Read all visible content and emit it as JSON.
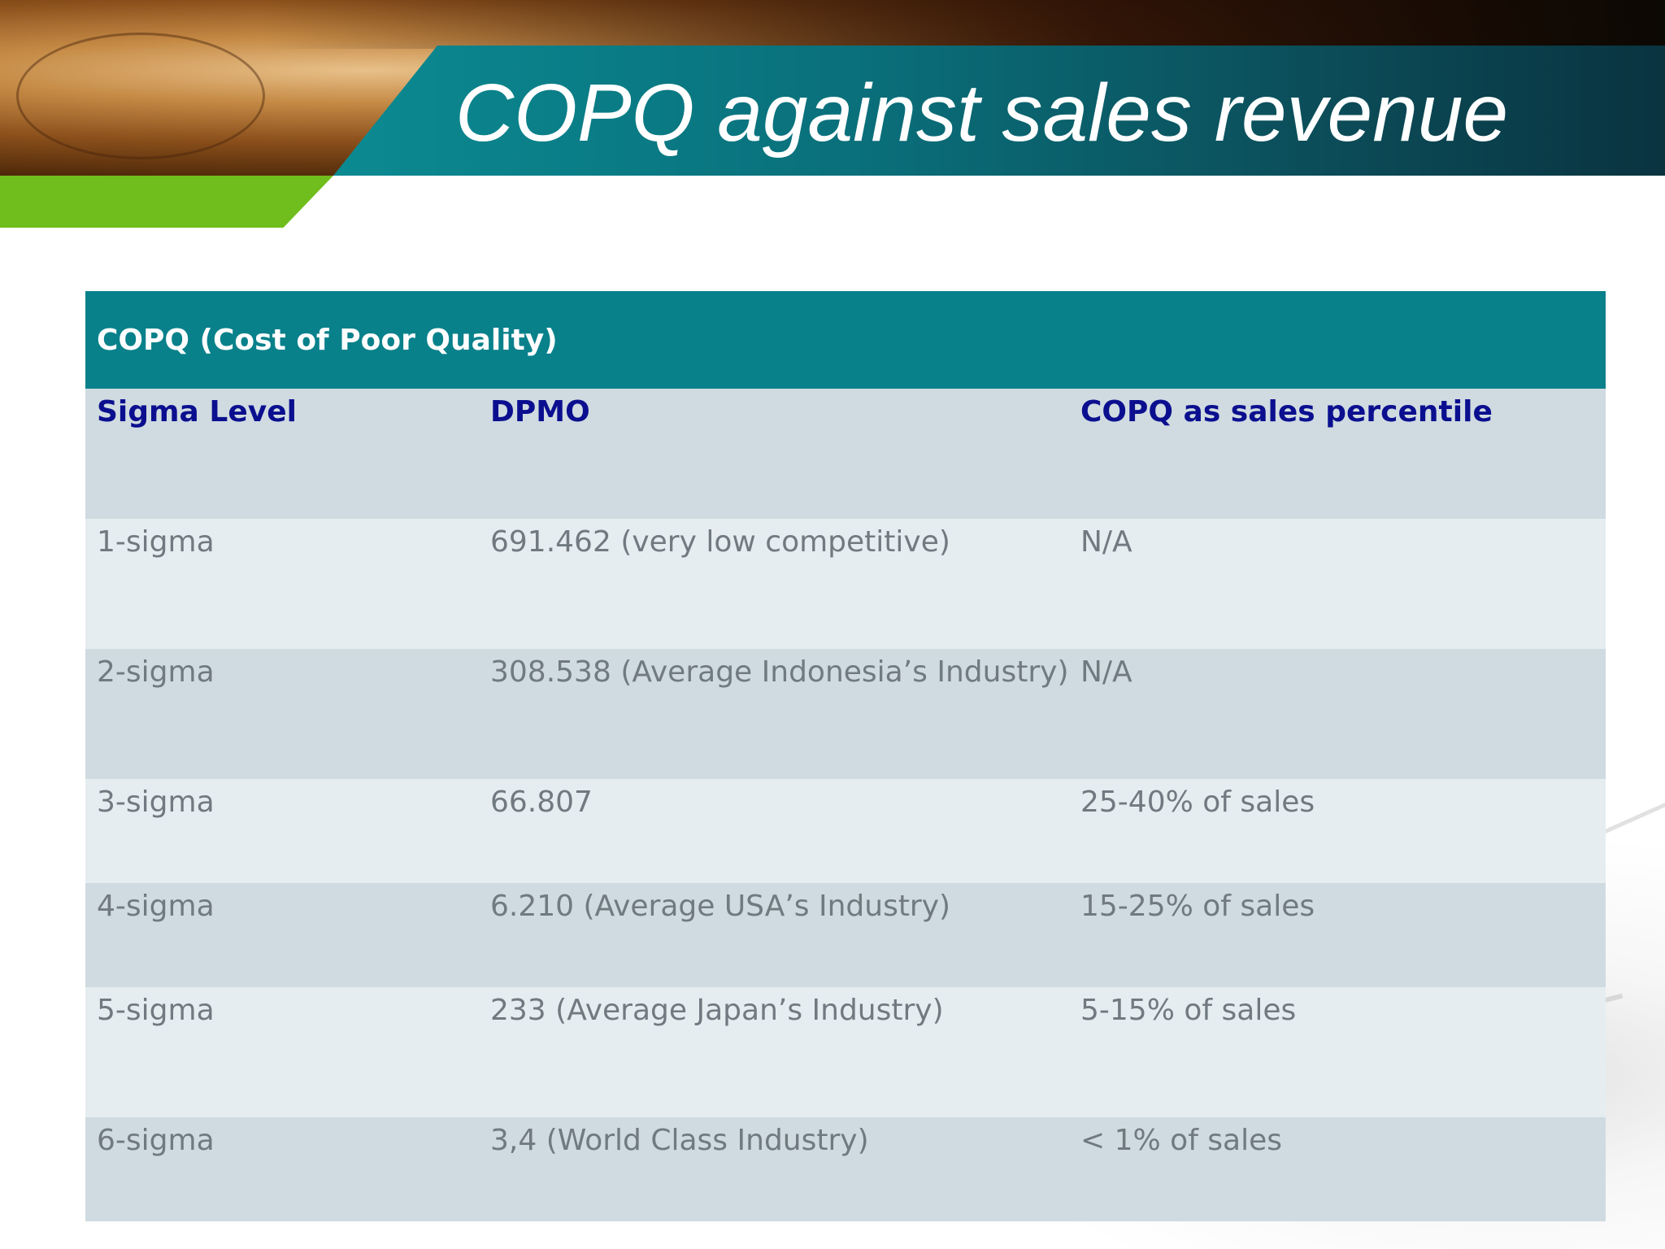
{
  "slide": {
    "title": "COPQ against sales revenue"
  },
  "table": {
    "title": "COPQ (Cost of Poor Quality)",
    "headers": [
      "Sigma Level",
      "DPMO",
      "COPQ as sales percentile"
    ],
    "rows": [
      [
        "1-sigma",
        "691.462 (very low competitive)",
        "N/A"
      ],
      [
        "2-sigma",
        "308.538 (Average Indonesia’s Industry)",
        "N/A"
      ],
      [
        "3-sigma",
        "66.807",
        "25-40% of sales"
      ],
      [
        "4-sigma",
        "6.210 (Average USA’s Industry)",
        "15-25% of sales"
      ],
      [
        "5-sigma",
        "233 (Average Japan’s Industry)",
        "5-15% of sales"
      ],
      [
        "6-sigma",
        "3,4 (World Class Industry)",
        "< 1% of sales"
      ]
    ]
  },
  "colors": {
    "title_band": "#0a6f7a",
    "green_accent": "#6fbe1d",
    "table_title_bg": "#08818b",
    "header_text": "#0b0f8f",
    "row_light": "#e6edf0",
    "row_dark": "#cfdbe0",
    "cell_text": "#707a80"
  }
}
